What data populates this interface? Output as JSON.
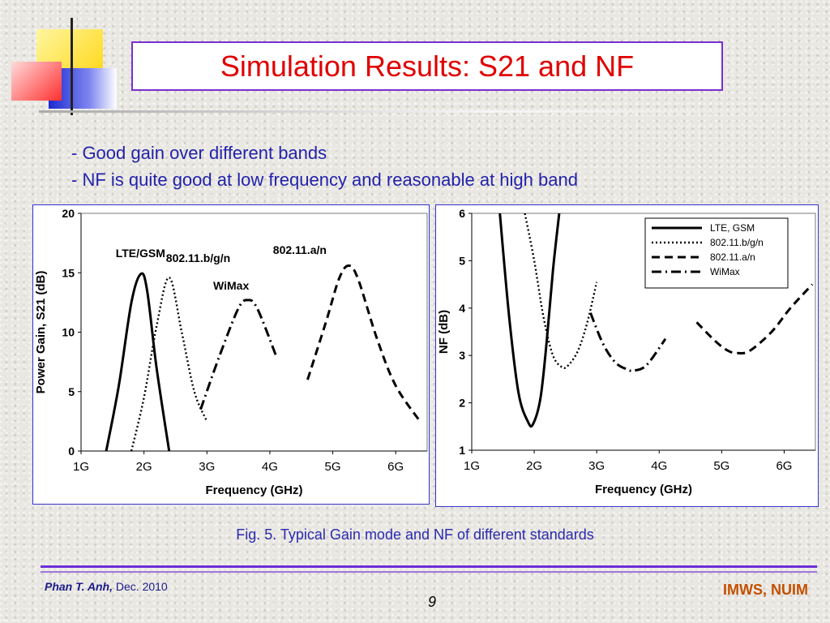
{
  "slide": {
    "title": "Simulation Results: S21 and NF",
    "bullets": [
      "- Good gain over different bands",
      "- NF is quite good at low frequency and reasonable at high band"
    ],
    "caption": "Fig. 5. Typical Gain mode and NF of different standards",
    "footer_author": "Phan T. Anh,",
    "footer_date": " Dec. 2010",
    "page_number": "9",
    "footer_org": "IMWS, NUIM"
  },
  "colors": {
    "title_text": "#e00000",
    "title_border": "#7a2fd0",
    "bullet_text": "#2222aa",
    "footer_org": "#c44f00",
    "divider": "#6d2fd8",
    "deco_yellow": "#ffd700",
    "deco_red": "#ff3030",
    "deco_blue": "#2a34d4"
  },
  "chart_data": [
    {
      "type": "line",
      "xlabel": "Frequency (GHz)",
      "ylabel": "Power Gain, S21 (dB)",
      "xlim": [
        1,
        6.5
      ],
      "ylim": [
        0,
        20
      ],
      "x_ticks": [
        1,
        2,
        3,
        4,
        5,
        6
      ],
      "x_tick_labels": [
        "1G",
        "2G",
        "3G",
        "4G",
        "5G",
        "6G"
      ],
      "y_ticks": [
        0,
        5,
        10,
        15,
        20
      ],
      "y_tick_labels": [
        "0",
        "5",
        "10",
        "15",
        "20"
      ],
      "series": [
        {
          "name": "LTE/GSM",
          "dash": "solid",
          "x": [
            1.4,
            1.6,
            1.8,
            1.95,
            2.05,
            2.2,
            2.4
          ],
          "y": [
            0,
            5.5,
            12.5,
            14.9,
            13.5,
            7,
            0
          ]
        },
        {
          "name": "802.11.b/g/n",
          "dash": "dotted",
          "x": [
            1.8,
            2.0,
            2.2,
            2.4,
            2.6,
            2.8,
            3.0
          ],
          "y": [
            0,
            4.5,
            10.5,
            14.6,
            10,
            5,
            2.5
          ]
        },
        {
          "name": "WiMax",
          "dash": "dashdot",
          "x": [
            2.9,
            3.2,
            3.5,
            3.65,
            3.8,
            4.1
          ],
          "y": [
            3.5,
            8,
            12,
            12.7,
            12,
            8
          ]
        },
        {
          "name": "802.11.a/n",
          "dash": "dashed",
          "x": [
            4.6,
            4.9,
            5.1,
            5.25,
            5.4,
            5.7,
            6.0,
            6.4
          ],
          "y": [
            6,
            11,
            14.5,
            15.6,
            14.5,
            9.5,
            5.5,
            2.4
          ]
        }
      ],
      "annotations": [
        {
          "text": "LTE/GSM",
          "x": 1.55,
          "y": 16.3
        },
        {
          "text": "802.11.b/g/n",
          "x": 2.35,
          "y": 15.9
        },
        {
          "text": "WiMax",
          "x": 3.1,
          "y": 13.6
        },
        {
          "text": "802.11.a/n",
          "x": 4.05,
          "y": 16.6
        }
      ],
      "grid": false
    },
    {
      "type": "line",
      "xlabel": "Frequency (GHz)",
      "ylabel": "NF (dB)",
      "xlim": [
        1,
        6.5
      ],
      "ylim": [
        1,
        6
      ],
      "x_ticks": [
        1,
        2,
        3,
        4,
        5,
        6
      ],
      "x_tick_labels": [
        "1G",
        "2G",
        "3G",
        "4G",
        "5G",
        "6G"
      ],
      "y_ticks": [
        1,
        2,
        3,
        4,
        5,
        6
      ],
      "y_tick_labels": [
        "1",
        "2",
        "3",
        "4",
        "5",
        "6"
      ],
      "legend": {
        "position": "top-right",
        "entries": [
          "LTE, GSM",
          "802.11.b/g/n",
          "802.11.a/n",
          "WiMax"
        ]
      },
      "series": [
        {
          "name": "LTE, GSM",
          "dash": "solid",
          "x": [
            1.45,
            1.6,
            1.75,
            1.9,
            1.98,
            2.1,
            2.2,
            2.3,
            2.4
          ],
          "y": [
            6,
            3.8,
            2.2,
            1.6,
            1.55,
            2.1,
            3.3,
            4.8,
            6
          ]
        },
        {
          "name": "802.11.b/g/n",
          "dash": "dotted",
          "x": [
            1.85,
            2.0,
            2.15,
            2.3,
            2.45,
            2.55,
            2.7,
            2.85,
            3.0
          ],
          "y": [
            6,
            5.0,
            3.8,
            3.0,
            2.75,
            2.8,
            3.1,
            3.7,
            4.55
          ]
        },
        {
          "name": "802.11.a/n",
          "dash": "dashed",
          "x": [
            4.6,
            4.9,
            5.1,
            5.25,
            5.45,
            5.8,
            6.1,
            6.45
          ],
          "y": [
            3.7,
            3.3,
            3.1,
            3.05,
            3.1,
            3.5,
            4.0,
            4.5
          ]
        },
        {
          "name": "WiMax",
          "dash": "dashdot",
          "x": [
            2.9,
            3.1,
            3.3,
            3.5,
            3.6,
            3.8,
            4.1
          ],
          "y": [
            3.9,
            3.25,
            2.85,
            2.7,
            2.68,
            2.8,
            3.35
          ]
        }
      ],
      "grid": false
    }
  ]
}
